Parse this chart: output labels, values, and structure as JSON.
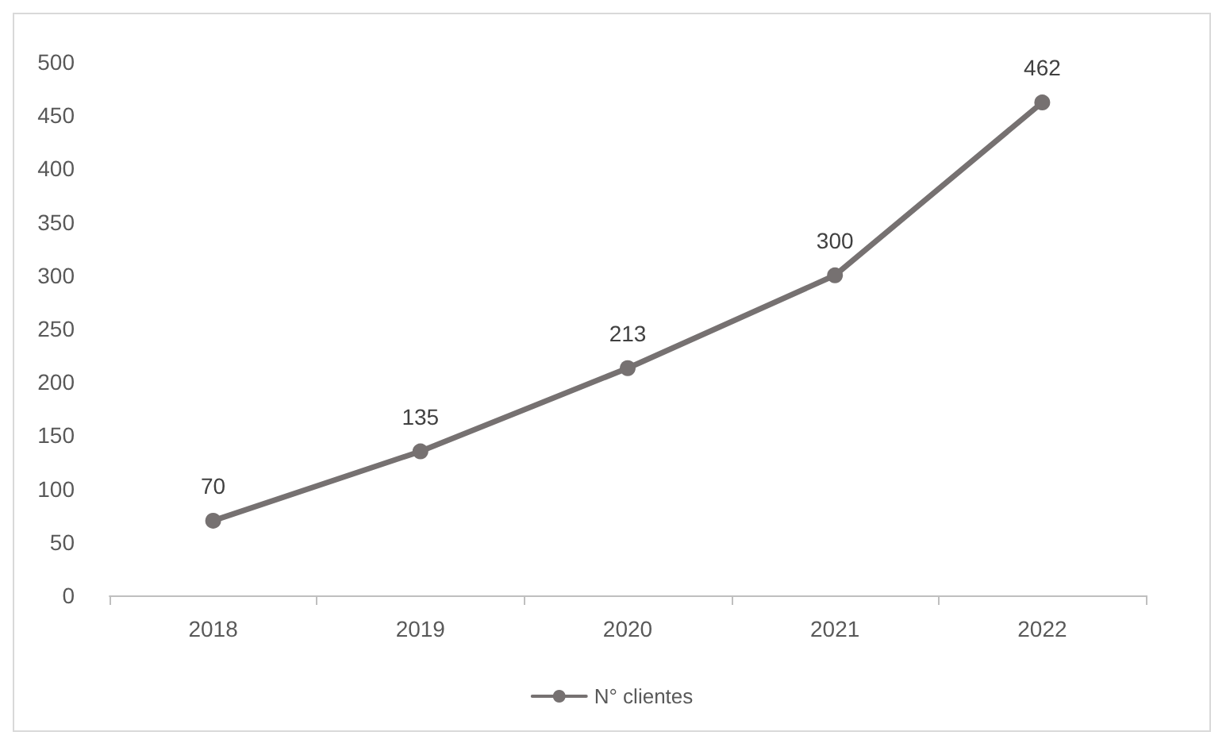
{
  "chart_data": {
    "type": "line",
    "categories": [
      "2018",
      "2019",
      "2020",
      "2021",
      "2022"
    ],
    "series": [
      {
        "name": "N° clientes",
        "color": "#767171",
        "values": [
          70,
          135,
          213,
          300,
          462
        ]
      }
    ],
    "ylim": [
      0,
      500
    ],
    "yticks": [
      0,
      50,
      100,
      150,
      200,
      250,
      300,
      350,
      400,
      450,
      500
    ],
    "grid": false,
    "legend": "bottom",
    "data_labels": true,
    "marker": "circle",
    "line_style": "solid"
  }
}
